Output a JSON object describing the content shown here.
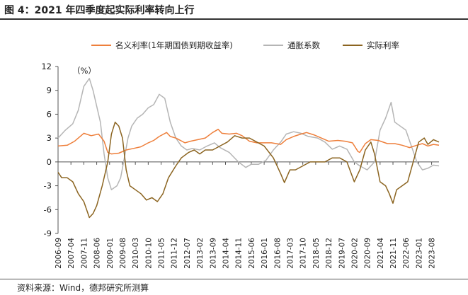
{
  "header": {
    "title": "图 4：2021 年四季度起实际利率转向上行"
  },
  "footer": {
    "source": "资料来源：Wind，德邦研究所测算"
  },
  "chart_data": {
    "type": "line",
    "unit_label": "（%）",
    "ylim": [
      -9,
      12
    ],
    "yticks": [
      -9,
      -6,
      -3,
      0,
      3,
      6,
      9,
      12
    ],
    "x_start": "2006-09",
    "x_end": "2023-12",
    "xtick_labels": [
      "2006-09",
      "2007-04",
      "2007-11",
      "2008-06",
      "2009-01",
      "2009-08",
      "2010-03",
      "2010-10",
      "2011-05",
      "2011-12",
      "2012-07",
      "2013-02",
      "2013-09",
      "2014-04",
      "2014-11",
      "2015-06",
      "2016-01",
      "2016-08",
      "2017-03",
      "2017-10",
      "2018-05",
      "2018-12",
      "2019-07",
      "2020-02",
      "2020-09",
      "2021-04",
      "2021-11",
      "2022-06",
      "2023-01",
      "2023-08"
    ],
    "colors": {
      "nominal": "#ee7f3b",
      "inflation": "#b5b5b5",
      "real": "#8b6420"
    },
    "series": [
      {
        "key": "nominal",
        "name": "名义利率(1年期国债到期收益率)",
        "points": [
          [
            "2006-09",
            2.0
          ],
          [
            "2007-02",
            2.1
          ],
          [
            "2007-06",
            2.6
          ],
          [
            "2007-11",
            3.6
          ],
          [
            "2008-03",
            3.3
          ],
          [
            "2008-07",
            3.5
          ],
          [
            "2008-10",
            2.6
          ],
          [
            "2008-12",
            1.2
          ],
          [
            "2009-02",
            1.0
          ],
          [
            "2009-06",
            1.1
          ],
          [
            "2009-10",
            1.5
          ],
          [
            "2010-02",
            1.7
          ],
          [
            "2010-06",
            1.9
          ],
          [
            "2010-10",
            2.4
          ],
          [
            "2011-01",
            2.7
          ],
          [
            "2011-04",
            3.2
          ],
          [
            "2011-08",
            3.7
          ],
          [
            "2011-10",
            3.2
          ],
          [
            "2012-01",
            3.0
          ],
          [
            "2012-06",
            2.4
          ],
          [
            "2012-09",
            2.6
          ],
          [
            "2013-01",
            2.8
          ],
          [
            "2013-05",
            3.0
          ],
          [
            "2013-09",
            3.7
          ],
          [
            "2013-12",
            4.1
          ],
          [
            "2014-02",
            3.6
          ],
          [
            "2014-06",
            3.5
          ],
          [
            "2014-10",
            3.6
          ],
          [
            "2015-01",
            3.3
          ],
          [
            "2015-05",
            2.6
          ],
          [
            "2015-09",
            2.4
          ],
          [
            "2016-01",
            2.4
          ],
          [
            "2016-05",
            2.4
          ],
          [
            "2016-10",
            2.2
          ],
          [
            "2017-01",
            2.8
          ],
          [
            "2017-05",
            3.2
          ],
          [
            "2017-09",
            3.5
          ],
          [
            "2017-12",
            3.7
          ],
          [
            "2018-04",
            3.4
          ],
          [
            "2018-08",
            3.0
          ],
          [
            "2018-12",
            2.6
          ],
          [
            "2019-05",
            2.7
          ],
          [
            "2019-09",
            2.6
          ],
          [
            "2020-01",
            2.4
          ],
          [
            "2020-04",
            1.3
          ],
          [
            "2020-05",
            1.2
          ],
          [
            "2020-08",
            2.3
          ],
          [
            "2020-11",
            2.8
          ],
          [
            "2021-03",
            2.7
          ],
          [
            "2021-08",
            2.3
          ],
          [
            "2021-12",
            2.3
          ],
          [
            "2022-04",
            2.1
          ],
          [
            "2022-08",
            1.8
          ],
          [
            "2022-12",
            2.1
          ],
          [
            "2023-03",
            2.3
          ],
          [
            "2023-06",
            2.0
          ],
          [
            "2023-09",
            2.2
          ],
          [
            "2023-12",
            2.1
          ]
        ]
      },
      {
        "key": "inflation",
        "name": "通胀系数",
        "points": [
          [
            "2006-09",
            3.0
          ],
          [
            "2007-01",
            4.0
          ],
          [
            "2007-05",
            4.8
          ],
          [
            "2007-08",
            6.5
          ],
          [
            "2007-11",
            9.5
          ],
          [
            "2008-02",
            10.5
          ],
          [
            "2008-04",
            9.0
          ],
          [
            "2008-06",
            7.0
          ],
          [
            "2008-08",
            5.0
          ],
          [
            "2008-10",
            1.0
          ],
          [
            "2008-12",
            -2.0
          ],
          [
            "2009-02",
            -3.5
          ],
          [
            "2009-05",
            -3.0
          ],
          [
            "2009-07",
            -2.0
          ],
          [
            "2009-09",
            0.5
          ],
          [
            "2009-11",
            3.0
          ],
          [
            "2010-01",
            4.5
          ],
          [
            "2010-04",
            5.5
          ],
          [
            "2010-07",
            6.0
          ],
          [
            "2010-10",
            6.8
          ],
          [
            "2011-01",
            7.2
          ],
          [
            "2011-04",
            8.5
          ],
          [
            "2011-07",
            8.0
          ],
          [
            "2011-10",
            5.0
          ],
          [
            "2012-01",
            3.0
          ],
          [
            "2012-04",
            2.0
          ],
          [
            "2012-07",
            1.5
          ],
          [
            "2012-10",
            1.7
          ],
          [
            "2013-02",
            1.5
          ],
          [
            "2013-06",
            2.0
          ],
          [
            "2013-10",
            2.4
          ],
          [
            "2014-01",
            1.8
          ],
          [
            "2014-06",
            1.2
          ],
          [
            "2014-11",
            0.0
          ],
          [
            "2015-03",
            -0.7
          ],
          [
            "2015-06",
            -0.3
          ],
          [
            "2015-10",
            -0.3
          ],
          [
            "2016-02",
            0.2
          ],
          [
            "2016-06",
            1.5
          ],
          [
            "2016-10",
            2.5
          ],
          [
            "2017-01",
            3.5
          ],
          [
            "2017-05",
            3.8
          ],
          [
            "2017-09",
            3.6
          ],
          [
            "2018-01",
            3.2
          ],
          [
            "2018-06",
            3.0
          ],
          [
            "2018-10",
            2.5
          ],
          [
            "2019-02",
            1.6
          ],
          [
            "2019-06",
            2.0
          ],
          [
            "2019-10",
            1.6
          ],
          [
            "2020-02",
            0.0
          ],
          [
            "2020-05",
            -0.5
          ],
          [
            "2020-09",
            -1.0
          ],
          [
            "2021-01",
            0.0
          ],
          [
            "2021-04",
            4.0
          ],
          [
            "2021-07",
            5.5
          ],
          [
            "2021-10",
            7.5
          ],
          [
            "2021-12",
            5.0
          ],
          [
            "2022-03",
            4.5
          ],
          [
            "2022-06",
            4.0
          ],
          [
            "2022-09",
            2.0
          ],
          [
            "2022-12",
            0.0
          ],
          [
            "2023-03",
            -1.0
          ],
          [
            "2023-06",
            -0.8
          ],
          [
            "2023-09",
            -0.4
          ],
          [
            "2023-12",
            -0.5
          ]
        ]
      },
      {
        "key": "real",
        "name": "实际利率",
        "points": [
          [
            "2006-09",
            -1.3
          ],
          [
            "2006-11",
            -2.0
          ],
          [
            "2007-02",
            -2.0
          ],
          [
            "2007-05",
            -2.5
          ],
          [
            "2007-08",
            -4.0
          ],
          [
            "2007-11",
            -5.0
          ],
          [
            "2008-02",
            -7.0
          ],
          [
            "2008-04",
            -6.5
          ],
          [
            "2008-06",
            -5.5
          ],
          [
            "2008-09",
            -3.0
          ],
          [
            "2008-12",
            0.0
          ],
          [
            "2009-02",
            3.5
          ],
          [
            "2009-04",
            5.0
          ],
          [
            "2009-06",
            4.5
          ],
          [
            "2009-08",
            3.0
          ],
          [
            "2009-10",
            -1.0
          ],
          [
            "2009-12",
            -3.0
          ],
          [
            "2010-03",
            -3.5
          ],
          [
            "2010-06",
            -4.0
          ],
          [
            "2010-09",
            -4.8
          ],
          [
            "2010-12",
            -4.5
          ],
          [
            "2011-03",
            -5.0
          ],
          [
            "2011-06",
            -4.0
          ],
          [
            "2011-09",
            -2.0
          ],
          [
            "2012-01",
            -0.5
          ],
          [
            "2012-04",
            0.5
          ],
          [
            "2012-08",
            1.2
          ],
          [
            "2012-11",
            1.5
          ],
          [
            "2013-02",
            1.0
          ],
          [
            "2013-05",
            1.5
          ],
          [
            "2013-09",
            1.5
          ],
          [
            "2014-01",
            2.0
          ],
          [
            "2014-05",
            2.5
          ],
          [
            "2014-09",
            3.3
          ],
          [
            "2015-01",
            3.0
          ],
          [
            "2015-05",
            3.0
          ],
          [
            "2015-09",
            2.5
          ],
          [
            "2016-01",
            2.0
          ],
          [
            "2016-06",
            0.5
          ],
          [
            "2016-10",
            -1.5
          ],
          [
            "2016-12",
            -2.6
          ],
          [
            "2017-03",
            -1.0
          ],
          [
            "2017-06",
            -1.0
          ],
          [
            "2017-10",
            -0.5
          ],
          [
            "2018-02",
            0.0
          ],
          [
            "2018-06",
            0.0
          ],
          [
            "2018-10",
            0.0
          ],
          [
            "2019-02",
            0.5
          ],
          [
            "2019-06",
            0.5
          ],
          [
            "2019-10",
            0.0
          ],
          [
            "2020-02",
            -2.5
          ],
          [
            "2020-05",
            -1.0
          ],
          [
            "2020-08",
            1.5
          ],
          [
            "2020-11",
            2.5
          ],
          [
            "2021-01",
            1.0
          ],
          [
            "2021-04",
            -2.5
          ],
          [
            "2021-07",
            -3.0
          ],
          [
            "2021-09",
            -4.0
          ],
          [
            "2021-11",
            -5.2
          ],
          [
            "2022-01",
            -3.5
          ],
          [
            "2022-04",
            -3.0
          ],
          [
            "2022-07",
            -2.5
          ],
          [
            "2022-10",
            0.0
          ],
          [
            "2023-01",
            2.5
          ],
          [
            "2023-04",
            3.0
          ],
          [
            "2023-06",
            2.2
          ],
          [
            "2023-09",
            2.8
          ],
          [
            "2023-12",
            2.5
          ]
        ]
      }
    ]
  }
}
